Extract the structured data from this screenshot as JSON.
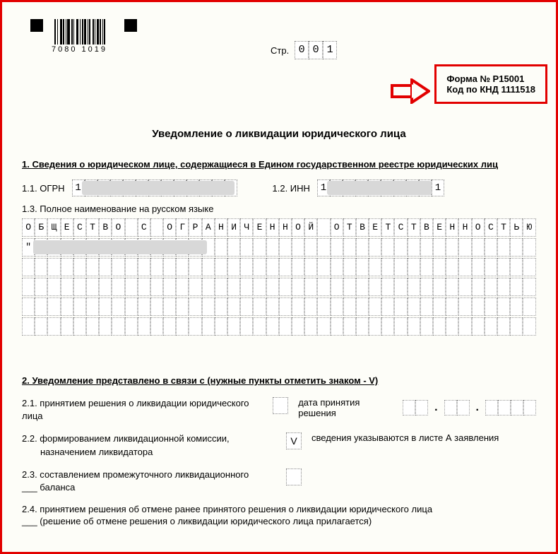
{
  "barcode_number": "7080 1019",
  "page": {
    "label": "Стр.",
    "digits": [
      "0",
      "0",
      "1"
    ]
  },
  "form_info": {
    "line1": "Форма № Р15001",
    "line2": "Код по КНД 1111518"
  },
  "title": "Уведомление о ликвидации юридического лица",
  "section1": {
    "heading": "1.   Сведения о юридическом лице, содержащиеся в Едином государственном реестре юридических лиц",
    "ogrn_label": "1.1. ОГРН",
    "ogrn_first": "1",
    "inn_label": "1.2. ИНН",
    "inn_first": "1",
    "inn_last": "1",
    "name_label": "1.3. Полное наименование на русском языке",
    "name_line1": "ОБЩЕСТВО С ОГРАНИЧЕННОЙ ОТВЕТСТВЕННОСТЬЮ",
    "name_line2_first": "\""
  },
  "section2": {
    "heading": "2.   Уведомление представлено в связи с (нужные пункты отметить знаком - V)",
    "item21": "2.1. принятием решения о ликвидации юридического лица",
    "item21_right": "дата принятия решения",
    "item22_line1": "2.2. формированием ликвидационной комиссии,",
    "item22_line2": "назначением ликвидатора",
    "item22_check": "V",
    "item22_right": "сведения указываются в листе А заявления",
    "item23_line1": "2.3. составлением промежуточного ликвидационного",
    "item23_line2": "___ баланса",
    "item24_line1": "2.4. принятием решения об отмене ранее принятого решения о ликвидации юридического лица",
    "item24_line2": "___ (решение об отмене решения о ликвидации юридического лица прилагается)"
  },
  "colors": {
    "border": "#e20000",
    "bg": "#fdfdf8",
    "redacted": "#d8d8d8"
  }
}
